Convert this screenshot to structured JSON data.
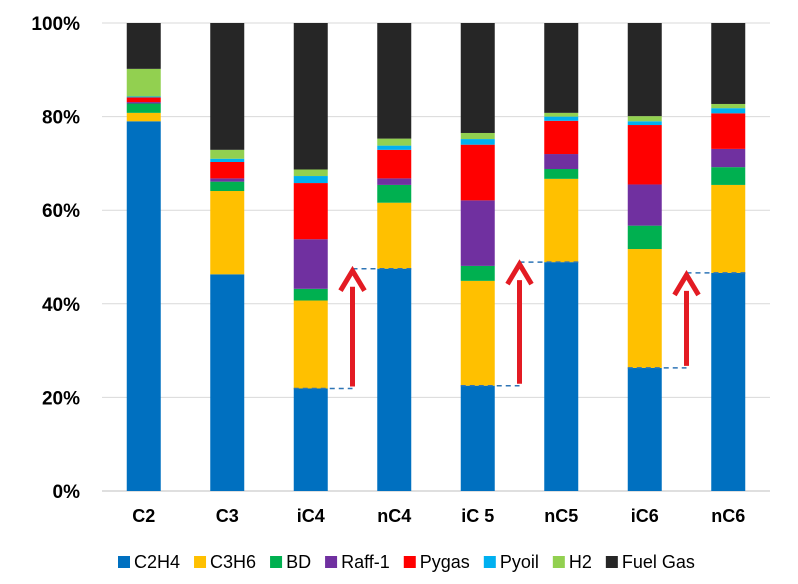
{
  "chart_data": {
    "type": "bar",
    "stacked": true,
    "categories": [
      "C2",
      "C3",
      "iC4",
      "nC4",
      "iC 5",
      "nC5",
      "iC6",
      "nC6"
    ],
    "ylim": [
      0,
      100
    ],
    "yticks": [
      "0%",
      "20%",
      "40%",
      "60%",
      "80%",
      "100%"
    ],
    "grid": true,
    "legend_position": "bottom",
    "series": [
      {
        "name": "C2H4",
        "color": "#0070C0",
        "values": [
          79.0,
          46.3,
          21.9,
          47.5,
          22.5,
          48.9,
          26.3,
          46.6
        ]
      },
      {
        "name": "C3H6",
        "color": "#FFC000",
        "values": [
          1.8,
          17.8,
          18.8,
          14.1,
          22.4,
          17.8,
          25.4,
          18.8
        ]
      },
      {
        "name": "BD",
        "color": "#00B050",
        "values": [
          2.0,
          2.0,
          2.5,
          3.8,
          3.2,
          2.1,
          5.0,
          3.8
        ]
      },
      {
        "name": "Raff-1",
        "color": "#7030A0",
        "values": [
          0.3,
          0.7,
          10.6,
          1.4,
          14.0,
          3.2,
          8.8,
          3.9
        ]
      },
      {
        "name": "Pygas",
        "color": "#FF0000",
        "values": [
          1.0,
          3.5,
          12.0,
          6.1,
          11.9,
          7.1,
          12.7,
          7.6
        ]
      },
      {
        "name": "Pyoil",
        "color": "#00B0F0",
        "values": [
          0.2,
          0.7,
          1.5,
          0.9,
          1.2,
          0.9,
          0.8,
          1.1
        ]
      },
      {
        "name": "H2",
        "color": "#92D050",
        "values": [
          5.9,
          1.9,
          1.4,
          1.5,
          1.3,
          0.8,
          1.1,
          0.9
        ]
      },
      {
        "name": "Fuel Gas",
        "color": "#262626",
        "values": [
          9.8,
          27.1,
          31.3,
          24.7,
          23.5,
          19.2,
          19.9,
          17.3
        ]
      }
    ],
    "annotations": [
      {
        "type": "increase-arrow",
        "from_category": "iC4",
        "to_category": "nC4",
        "from_value": 21.9,
        "to_value": 47.5,
        "color": "#E31B23"
      },
      {
        "type": "increase-arrow",
        "from_category": "iC 5",
        "to_category": "nC5",
        "from_value": 22.5,
        "to_value": 48.9,
        "color": "#E31B23"
      },
      {
        "type": "increase-arrow",
        "from_category": "iC6",
        "to_category": "nC6",
        "from_value": 26.3,
        "to_value": 46.6,
        "color": "#E31B23"
      }
    ]
  }
}
